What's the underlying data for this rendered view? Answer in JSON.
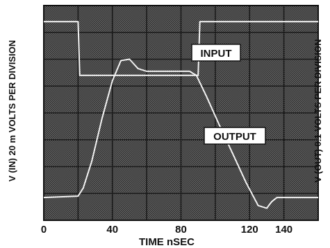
{
  "chart_data": {
    "type": "line",
    "title": "",
    "xlabel": "TIME nSEC",
    "ylabel_left": "V (IN) 20 m VOLTS PER DIVISION",
    "ylabel_right": "V (OUT) 0.1 VOLTS PER DIVISION",
    "xlim": [
      0,
      160
    ],
    "x_ticks": [
      "0",
      "40",
      "80",
      "120",
      "140"
    ],
    "x_tick_values": [
      0,
      40,
      80,
      120,
      140
    ],
    "grid": true,
    "grid_divisions_x": 8,
    "grid_divisions_y": 8,
    "ylim_divisions": [
      0,
      8
    ],
    "series": [
      {
        "name": "INPUT",
        "x": [
          0,
          20,
          21,
          90,
          91,
          160
        ],
        "y": [
          7.4,
          7.4,
          5.4,
          5.4,
          7.4,
          7.4
        ]
      },
      {
        "name": "OUTPUT",
        "x": [
          0,
          20,
          23,
          28,
          34,
          40,
          45,
          50,
          55,
          60,
          65,
          70,
          75,
          80,
          85,
          89,
          95,
          102,
          110,
          118,
          125,
          130,
          133,
          136,
          140,
          148,
          155,
          160
        ],
        "y": [
          0.85,
          0.9,
          1.2,
          2.2,
          3.8,
          5.2,
          5.95,
          6.0,
          5.65,
          5.55,
          5.55,
          5.55,
          5.55,
          5.55,
          5.55,
          5.4,
          4.6,
          3.6,
          2.5,
          1.4,
          0.55,
          0.45,
          0.7,
          0.85,
          0.85,
          0.85,
          0.85,
          0.85
        ]
      }
    ],
    "annotations": [
      "INPUT",
      "OUTPUT"
    ]
  },
  "colors": {
    "plot_background": "#3c3c3c",
    "grid_line": "#1a1a1a",
    "trace": "#f4f4f4",
    "label_box": "#ffffff",
    "text": "#111111"
  }
}
